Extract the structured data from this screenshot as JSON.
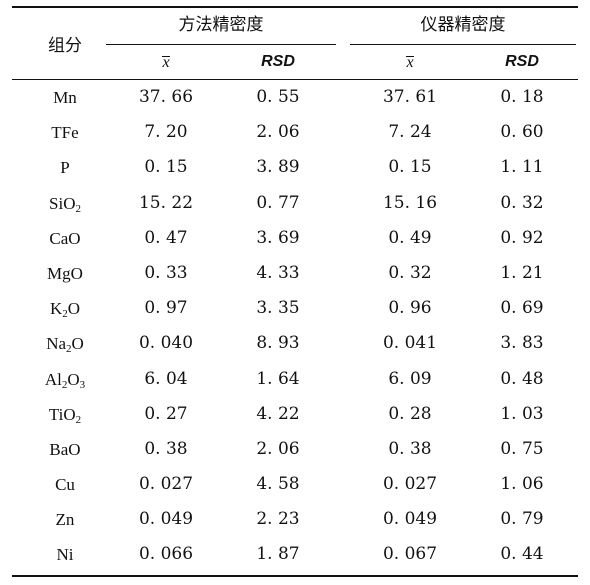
{
  "table": {
    "header": {
      "component": "组分",
      "group1": "方法精密度",
      "group2": "仪器精密度",
      "mean_symbol": "x",
      "rsd": "RSD"
    },
    "rows": [
      {
        "name": "Mn",
        "m_mean": "37. 66",
        "m_rsd": "0. 55",
        "i_mean": "37. 61",
        "i_rsd": "0. 18"
      },
      {
        "name": "TFe",
        "m_mean": "7. 20",
        "m_rsd": "2. 06",
        "i_mean": "7. 24",
        "i_rsd": "0. 60"
      },
      {
        "name": "P",
        "m_mean": "0. 15",
        "m_rsd": "3. 89",
        "i_mean": "0. 15",
        "i_rsd": "1. 11"
      },
      {
        "name_parts": [
          "SiO",
          "2",
          ""
        ],
        "m_mean": "15. 22",
        "m_rsd": "0. 77",
        "i_mean": "15. 16",
        "i_rsd": "0. 32"
      },
      {
        "name": "CaO",
        "m_mean": "0. 47",
        "m_rsd": "3. 69",
        "i_mean": "0. 49",
        "i_rsd": "0. 92"
      },
      {
        "name": "MgO",
        "m_mean": "0. 33",
        "m_rsd": "4. 33",
        "i_mean": "0. 32",
        "i_rsd": "1. 21"
      },
      {
        "name_parts": [
          "K",
          "2",
          "O"
        ],
        "m_mean": "0. 97",
        "m_rsd": "3. 35",
        "i_mean": "0. 96",
        "i_rsd": "0. 69"
      },
      {
        "name_parts": [
          "Na",
          "2",
          "O"
        ],
        "m_mean": "0. 040",
        "m_rsd": "8. 93",
        "i_mean": "0. 041",
        "i_rsd": "3. 83"
      },
      {
        "name_parts": [
          "Al",
          "2",
          "O",
          "3"
        ],
        "m_mean": "6. 04",
        "m_rsd": "1. 64",
        "i_mean": "6. 09",
        "i_rsd": "0. 48"
      },
      {
        "name_parts": [
          "TiO",
          "2",
          ""
        ],
        "m_mean": "0. 27",
        "m_rsd": "4. 22",
        "i_mean": "0. 28",
        "i_rsd": "1. 03"
      },
      {
        "name": "BaO",
        "m_mean": "0. 38",
        "m_rsd": "2. 06",
        "i_mean": "0. 38",
        "i_rsd": "0. 75"
      },
      {
        "name": "Cu",
        "m_mean": "0. 027",
        "m_rsd": "4. 58",
        "i_mean": "0. 027",
        "i_rsd": "1. 06"
      },
      {
        "name": "Zn",
        "m_mean": "0. 049",
        "m_rsd": "2. 23",
        "i_mean": "0. 049",
        "i_rsd": "0. 79"
      },
      {
        "name": "Ni",
        "m_mean": "0. 066",
        "m_rsd": "1. 87",
        "i_mean": "0. 067",
        "i_rsd": "0. 44"
      }
    ]
  }
}
